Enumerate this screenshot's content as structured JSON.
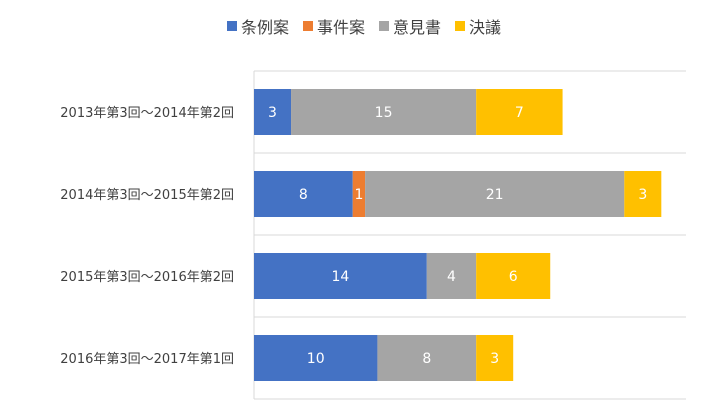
{
  "chart_data": {
    "type": "bar",
    "orientation": "horizontal",
    "stacked": true,
    "categories": [
      "2013年第3回〜2014年第2回",
      "2014年第3回〜2015年第2回",
      "2015年第3回〜2016年第2回",
      "2016年第3回〜2017年第1回"
    ],
    "series": [
      {
        "name": "条例案",
        "color": "#4472C4",
        "values": [
          3,
          8,
          14,
          10
        ]
      },
      {
        "name": "事件案",
        "color": "#ED7D31",
        "values": [
          0,
          1,
          0,
          0
        ]
      },
      {
        "name": "意見書",
        "color": "#A5A5A5",
        "values": [
          15,
          21,
          4,
          8
        ]
      },
      {
        "name": "決議",
        "color": "#FFC000",
        "values": [
          7,
          3,
          6,
          3
        ]
      }
    ],
    "xlim": [
      0,
      35
    ],
    "grid": true,
    "legend_position": "top"
  }
}
